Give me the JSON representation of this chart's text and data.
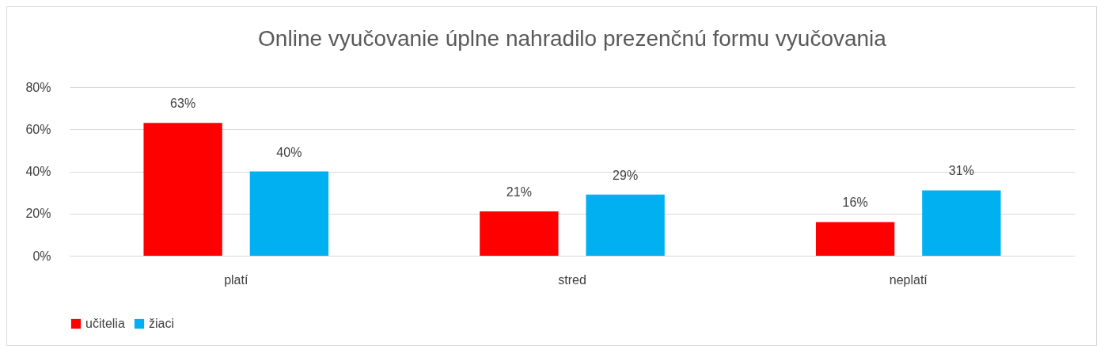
{
  "chart_data": {
    "type": "bar",
    "title": "Online vyučovanie úplne nahradilo prezenčnú formu vyučovania",
    "categories": [
      "platí",
      "stred",
      "neplatí"
    ],
    "series": [
      {
        "name": "učitelia",
        "color": "#ff0000",
        "values": [
          63,
          21,
          16
        ],
        "value_labels": [
          "63%",
          "21%",
          "16%"
        ]
      },
      {
        "name": "žiaci",
        "color": "#00b0f0",
        "values": [
          40,
          29,
          31
        ],
        "value_labels": [
          "40%",
          "29%",
          "31%"
        ]
      }
    ],
    "ylim": [
      0,
      80
    ],
    "yticks": [
      {
        "value": 0,
        "label": "0%"
      },
      {
        "value": 20,
        "label": "20%"
      },
      {
        "value": 40,
        "label": "40%"
      },
      {
        "value": 60,
        "label": "60%"
      },
      {
        "value": 80,
        "label": "80%"
      }
    ],
    "grid": "y",
    "legend": "bottom"
  }
}
